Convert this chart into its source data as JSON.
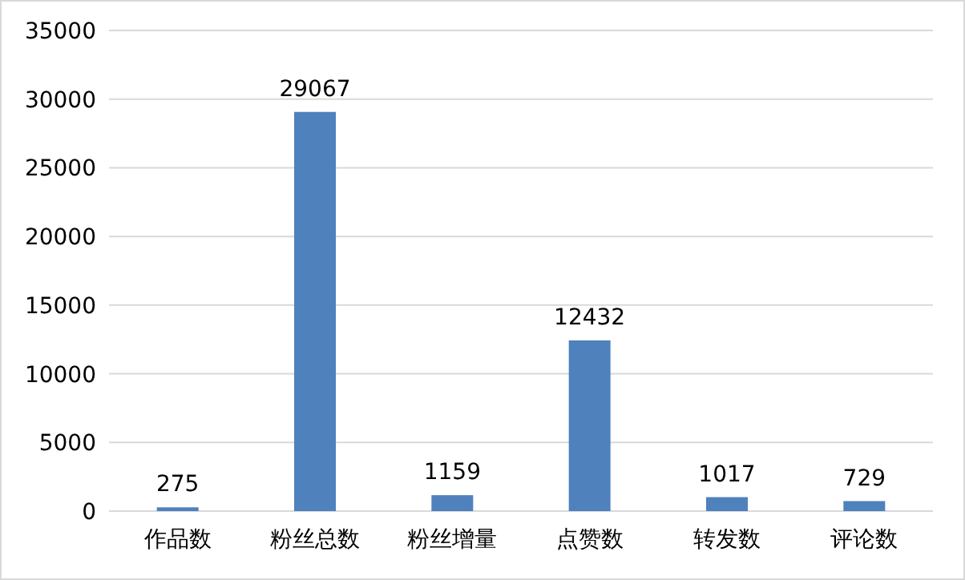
{
  "chart_data": {
    "type": "bar",
    "categories": [
      "作品数",
      "粉丝总数",
      "粉丝增量",
      "点赞数",
      "转发数",
      "评论数"
    ],
    "values": [
      275,
      29067,
      1159,
      12432,
      1017,
      729
    ],
    "color": "#4f81bd",
    "ylim": [
      0,
      35000
    ],
    "yticks": [
      0,
      5000,
      10000,
      15000,
      20000,
      25000,
      30000,
      35000
    ],
    "grid": "y",
    "data_labels": true
  }
}
